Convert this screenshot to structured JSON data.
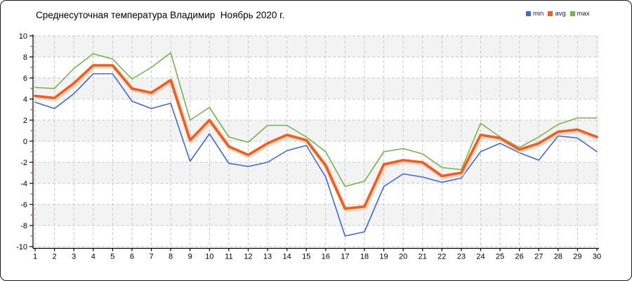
{
  "chart_data": {
    "type": "line",
    "title": "Среднесуточная температура Владимир  Ноябрь 2020 г.",
    "xlabel": "",
    "ylabel": "",
    "x": [
      1,
      2,
      3,
      4,
      5,
      6,
      7,
      8,
      9,
      10,
      11,
      12,
      13,
      14,
      15,
      16,
      17,
      18,
      19,
      20,
      21,
      22,
      23,
      24,
      25,
      26,
      27,
      28,
      29,
      30
    ],
    "y_ticks": [
      10,
      8,
      6,
      4,
      2,
      0,
      -2,
      -4,
      -6,
      -8,
      -10
    ],
    "ylim": [
      -10,
      10
    ],
    "grid": "dashed-both-axes",
    "legend_position": "top-right",
    "series": [
      {
        "name": "min",
        "color": "#4268d3",
        "width": 1.6,
        "values": [
          3.7,
          3.1,
          4.5,
          6.4,
          6.4,
          3.8,
          3.1,
          3.6,
          -1.9,
          0.7,
          -2.1,
          -2.4,
          -2.0,
          -0.9,
          -0.4,
          -3.4,
          -9.0,
          -8.6,
          -4.3,
          -3.1,
          -3.4,
          -3.9,
          -3.5,
          -1.0,
          -0.2,
          -1.1,
          -1.8,
          0.5,
          0.3,
          -1.0
        ]
      },
      {
        "name": "avg",
        "color": "#e2622c",
        "halo": "#f4c4a0",
        "width": 3.6,
        "values": [
          4.3,
          4.1,
          5.5,
          7.2,
          7.2,
          5.0,
          4.6,
          5.8,
          0.1,
          2.0,
          -0.5,
          -1.3,
          -0.2,
          0.6,
          0.1,
          -2.3,
          -6.4,
          -6.2,
          -2.2,
          -1.8,
          -2.0,
          -3.3,
          -3.0,
          0.6,
          0.3,
          -0.8,
          -0.2,
          0.9,
          1.1,
          0.4
        ]
      },
      {
        "name": "max",
        "color": "#72b54d",
        "width": 1.6,
        "values": [
          5.1,
          5.0,
          6.9,
          8.3,
          7.8,
          5.9,
          7.0,
          8.4,
          2.0,
          3.2,
          0.4,
          -0.1,
          1.5,
          1.5,
          0.4,
          -1.0,
          -4.3,
          -3.8,
          -1.0,
          -0.7,
          -1.2,
          -2.5,
          -2.7,
          1.7,
          0.4,
          -0.6,
          0.4,
          1.6,
          2.2,
          2.2
        ]
      }
    ]
  },
  "style": {
    "band_color": "#f3f3f3",
    "grid_color": "#c9c9c9",
    "axis_color": "#000000",
    "minor_tick_color": "#cc3b2f",
    "text_color": "#000000"
  }
}
